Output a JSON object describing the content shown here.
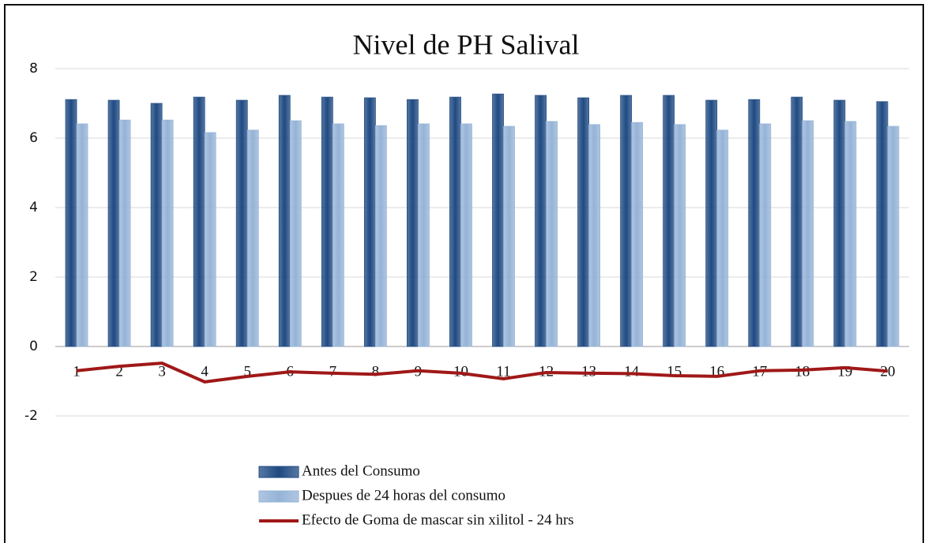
{
  "chart_data": {
    "type": "bar",
    "title": "Nivel de PH Salival",
    "categories": [
      "1",
      "2",
      "3",
      "4",
      "5",
      "6",
      "7",
      "8",
      "9",
      "10",
      "11",
      "12",
      "13",
      "14",
      "15",
      "16",
      "17",
      "18",
      "19",
      "20"
    ],
    "series": [
      {
        "name": "Antes del Consumo",
        "type": "bar",
        "color": "#1f4a82",
        "values": [
          7.11,
          7.09,
          7.0,
          7.18,
          7.09,
          7.23,
          7.18,
          7.16,
          7.11,
          7.18,
          7.27,
          7.23,
          7.16,
          7.23,
          7.23,
          7.09,
          7.11,
          7.18,
          7.09,
          7.05
        ]
      },
      {
        "name": "Despues de 24 horas del consumo",
        "type": "bar",
        "color": "#95b3d7",
        "values": [
          6.41,
          6.52,
          6.52,
          6.16,
          6.23,
          6.5,
          6.41,
          6.36,
          6.41,
          6.41,
          6.34,
          6.48,
          6.39,
          6.45,
          6.39,
          6.23,
          6.41,
          6.5,
          6.48,
          6.34
        ]
      },
      {
        "name": "Efecto de Goma de mascar sin xilitol - 24 hrs",
        "type": "line",
        "color": "#a01818",
        "values": [
          -0.7,
          -0.57,
          -0.48,
          -1.02,
          -0.86,
          -0.73,
          -0.77,
          -0.8,
          -0.7,
          -0.77,
          -0.93,
          -0.75,
          -0.77,
          -0.78,
          -0.84,
          -0.86,
          -0.7,
          -0.68,
          -0.61,
          -0.71
        ]
      }
    ],
    "ylim": [
      -2.5,
      8
    ],
    "yticks": [
      -2,
      0,
      2,
      4,
      6,
      8
    ],
    "grid": true,
    "legend": "bottom"
  }
}
